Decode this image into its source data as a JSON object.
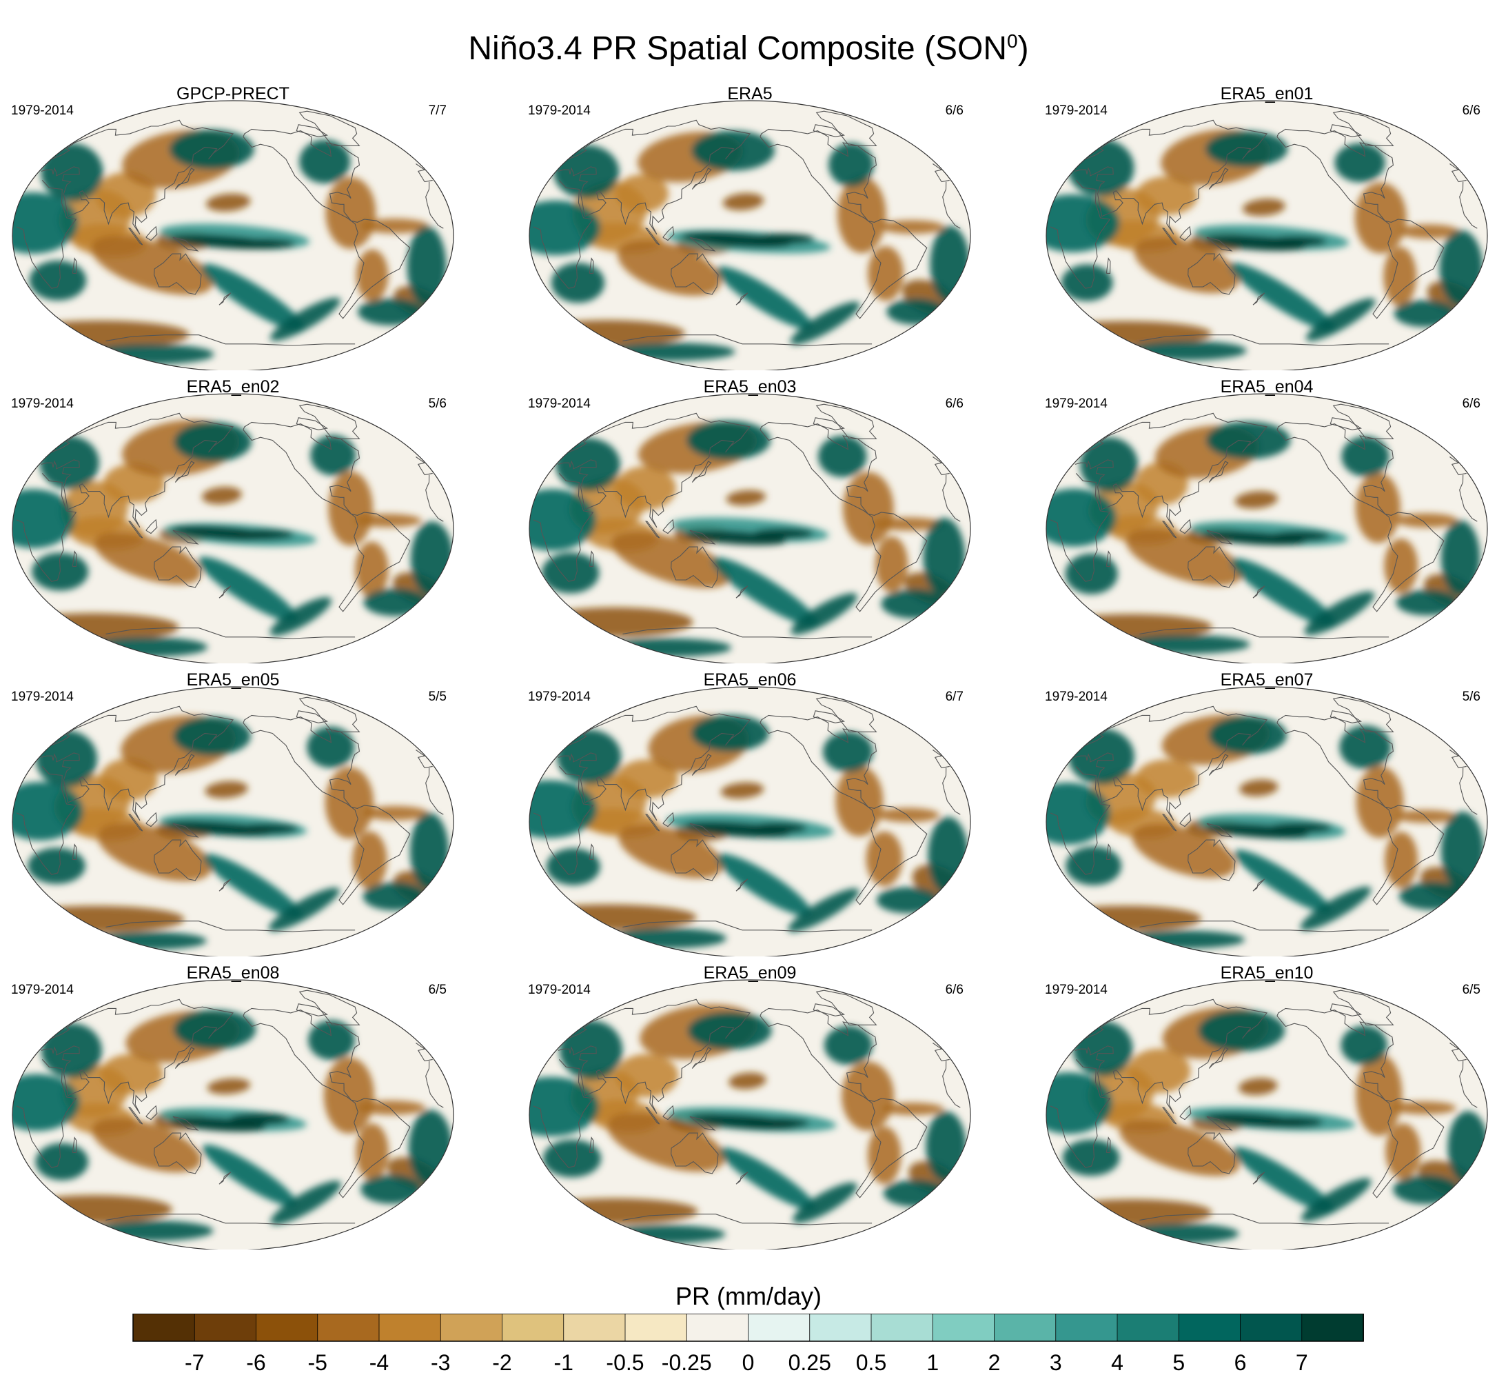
{
  "title": {
    "text": "Niño3.4 PR Spatial Composite (SON",
    "superscript": "0",
    "close": ")"
  },
  "chart_data": {
    "type": "heatmap",
    "title": "Niño3.4 PR Spatial Composite (SON0)",
    "variable_label": "PR (mm/day)",
    "projection": "Robinson, Pacific-centered",
    "panels": [
      {
        "name": "GPCP-PRECT",
        "period": "1979-2014",
        "events": "7/7"
      },
      {
        "name": "ERA5",
        "period": "1979-2014",
        "events": "6/6"
      },
      {
        "name": "ERA5_en01",
        "period": "1979-2014",
        "events": "6/6"
      },
      {
        "name": "ERA5_en02",
        "period": "1979-2014",
        "events": "5/6"
      },
      {
        "name": "ERA5_en03",
        "period": "1979-2014",
        "events": "6/6"
      },
      {
        "name": "ERA5_en04",
        "period": "1979-2014",
        "events": "6/6"
      },
      {
        "name": "ERA5_en05",
        "period": "1979-2014",
        "events": "5/5"
      },
      {
        "name": "ERA5_en06",
        "period": "1979-2014",
        "events": "6/7"
      },
      {
        "name": "ERA5_en07",
        "period": "1979-2014",
        "events": "5/6"
      },
      {
        "name": "ERA5_en08",
        "period": "1979-2014",
        "events": "6/5"
      },
      {
        "name": "ERA5_en09",
        "period": "1979-2014",
        "events": "6/6"
      },
      {
        "name": "ERA5_en10",
        "period": "1979-2014",
        "events": "6/5"
      }
    ],
    "colorbar": {
      "levels": [
        "-7",
        "-6",
        "-5",
        "-4",
        "-3",
        "-2",
        "-1",
        "-0.5",
        "-0.25",
        "0",
        "0.25",
        "0.5",
        "1",
        "2",
        "3",
        "4",
        "5",
        "6",
        "7"
      ],
      "colors": [
        "#543005",
        "#6e3e0a",
        "#8c510a",
        "#a8691f",
        "#bf812d",
        "#d0a257",
        "#dfc27d",
        "#ebd6a4",
        "#f6e8c3",
        "#f5f2ea",
        "#e6f4f1",
        "#c7eae5",
        "#a8ddd4",
        "#80cdc1",
        "#5ab4a8",
        "#35978f",
        "#1b7e74",
        "#01665e",
        "#01564e",
        "#003c30"
      ]
    }
  }
}
